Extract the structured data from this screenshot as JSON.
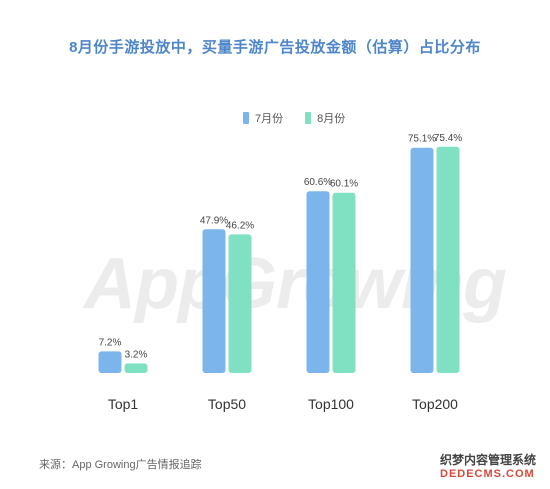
{
  "title": "8月份手游投放中，买量手游广告投放金额（估算）占比分布",
  "source": "来源：App Growing广告情报追踪",
  "watermark": {
    "center_text": "AppGrowing",
    "corner_line1": "织梦内容管理系统",
    "corner_line2": "DEDECMS.COM"
  },
  "colors": {
    "july": "#7cb5ec",
    "august": "#7fe0c2",
    "title": "#4e86c9"
  },
  "chart_data": {
    "type": "bar",
    "title": "8月份手游投放中，买量手游广告投放金额（估算）占比分布",
    "categories": [
      "Top1",
      "Top50",
      "Top100",
      "Top200"
    ],
    "series": [
      {
        "name": "7月份",
        "values": [
          7.2,
          47.9,
          60.6,
          75.1
        ],
        "labels": [
          "7.2%",
          "47.9%",
          "60.6%",
          "75.1%"
        ]
      },
      {
        "name": "8月份",
        "values": [
          3.2,
          46.2,
          60.1,
          75.4
        ],
        "labels": [
          "3.2%",
          "46.2%",
          "60.1%",
          "75.4%"
        ]
      }
    ],
    "ylim": [
      0,
      100
    ],
    "unit": "%",
    "legend_position": "top-center",
    "grid": false
  }
}
